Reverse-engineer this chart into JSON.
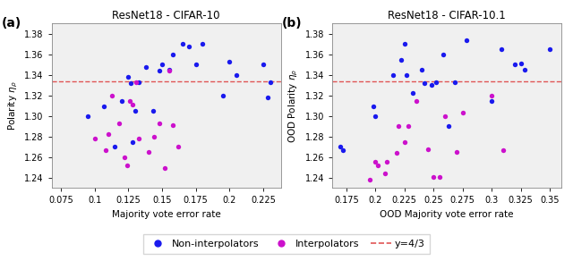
{
  "title_a": "ResNet18 - CIFAR-10",
  "title_b": "ResNet18 - CIFAR-10.1",
  "xlabel_a": "Majority vote error rate",
  "ylabel_a": "Polarity $\\eta_\\rho$",
  "xlabel_b": "OOD Majority vote error rate",
  "ylabel_b": "OOD Polarity $\\eta_\\rho$",
  "xlim_a": [
    0.068,
    0.238
  ],
  "ylim_a": [
    1.23,
    1.39
  ],
  "xlim_b": [
    0.163,
    0.36
  ],
  "ylim_b": [
    1.23,
    1.39
  ],
  "hline_y": 1.3333333,
  "hline_color": "#e05555",
  "blue_color": "#1a1aee",
  "magenta_color": "#cc11cc",
  "xticks_a": [
    0.075,
    0.1,
    0.125,
    0.15,
    0.175,
    0.2,
    0.225
  ],
  "xticks_b": [
    0.175,
    0.2,
    0.225,
    0.25,
    0.275,
    0.3,
    0.325,
    0.35
  ],
  "yticks": [
    1.24,
    1.26,
    1.28,
    1.3,
    1.32,
    1.34,
    1.36,
    1.38
  ],
  "panel_a_blue_x": [
    0.095,
    0.107,
    0.115,
    0.12,
    0.125,
    0.127,
    0.128,
    0.13,
    0.133,
    0.138,
    0.143,
    0.148,
    0.15,
    0.155,
    0.158,
    0.165,
    0.17,
    0.175,
    0.18,
    0.195,
    0.2,
    0.205,
    0.225,
    0.228,
    0.23
  ],
  "panel_a_blue_y": [
    1.3,
    1.309,
    1.27,
    1.315,
    1.338,
    1.332,
    1.275,
    1.305,
    1.333,
    1.348,
    1.305,
    1.344,
    1.35,
    1.345,
    1.36,
    1.37,
    1.368,
    1.35,
    1.37,
    1.32,
    1.353,
    1.34,
    1.35,
    1.318,
    1.333
  ],
  "panel_a_mag_x": [
    0.1,
    0.108,
    0.11,
    0.113,
    0.118,
    0.122,
    0.124,
    0.126,
    0.128,
    0.131,
    0.133,
    0.14,
    0.144,
    0.148,
    0.152,
    0.155,
    0.158,
    0.162
  ],
  "panel_a_mag_y": [
    1.278,
    1.267,
    1.282,
    1.32,
    1.293,
    1.26,
    1.252,
    1.315,
    1.311,
    1.333,
    1.278,
    1.265,
    1.28,
    1.293,
    1.249,
    1.344,
    1.291,
    1.27
  ],
  "panel_b_blue_x": [
    0.17,
    0.172,
    0.198,
    0.2,
    0.215,
    0.222,
    0.225,
    0.227,
    0.232,
    0.24,
    0.242,
    0.248,
    0.252,
    0.258,
    0.263,
    0.268,
    0.278,
    0.3,
    0.308,
    0.32,
    0.325,
    0.328,
    0.35
  ],
  "panel_b_blue_y": [
    1.27,
    1.267,
    1.309,
    1.3,
    1.34,
    1.355,
    1.37,
    1.34,
    1.322,
    1.345,
    1.332,
    1.33,
    1.333,
    1.36,
    1.29,
    1.333,
    1.374,
    1.315,
    1.365,
    1.35,
    1.351,
    1.345,
    1.365
  ],
  "panel_b_mag_x": [
    0.195,
    0.2,
    0.202,
    0.208,
    0.21,
    0.218,
    0.22,
    0.225,
    0.228,
    0.235,
    0.245,
    0.25,
    0.255,
    0.26,
    0.27,
    0.275,
    0.3,
    0.31
  ],
  "panel_b_mag_y": [
    1.238,
    1.255,
    1.252,
    1.244,
    1.255,
    1.264,
    1.29,
    1.275,
    1.29,
    1.315,
    1.268,
    1.241,
    1.241,
    1.3,
    1.265,
    1.303,
    1.32,
    1.267
  ],
  "label_blue": "Non-interpolators",
  "label_mag": "Interpolators",
  "label_hline": "y=4/3",
  "label_a": "(a)",
  "label_b": "(b)",
  "marker_size": 15,
  "bg_color": "#f0f0f0"
}
